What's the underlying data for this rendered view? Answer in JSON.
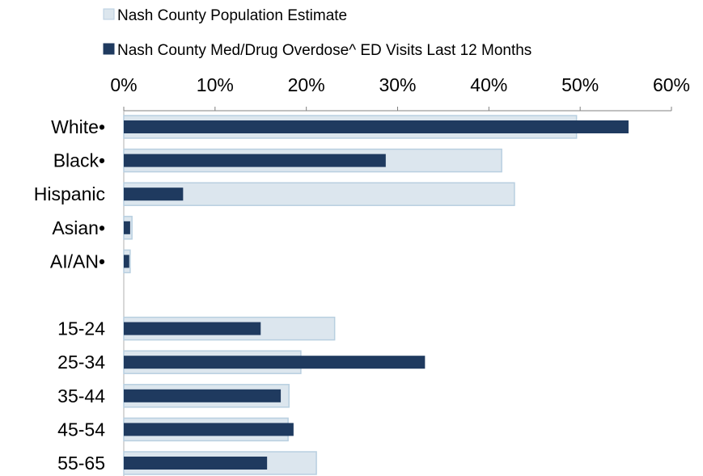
{
  "chart_data": {
    "type": "bar",
    "orientation": "horizontal",
    "title": "",
    "xlabel": "",
    "ylabel": "",
    "xlim": [
      0,
      0.6
    ],
    "x_ticks": [
      {
        "value": 0.0,
        "label": "0%"
      },
      {
        "value": 0.1,
        "label": "10%"
      },
      {
        "value": 0.2,
        "label": "20%"
      },
      {
        "value": 0.3,
        "label": "30%"
      },
      {
        "value": 0.4,
        "label": "40%"
      },
      {
        "value": 0.5,
        "label": "50%"
      },
      {
        "value": 0.6,
        "label": "60%"
      }
    ],
    "x_axis_position": "top",
    "grid": false,
    "legend_position": "top",
    "categories": [
      "White•",
      "Black•",
      "Hispanic",
      "Asian•",
      "AI/AN•",
      "",
      "15-24",
      "25-34",
      "35-44",
      "45-54",
      "55-65"
    ],
    "series": [
      {
        "name": "Nash County Population Estimate",
        "color": "#dce6ee",
        "border_color": "#b8cfe0",
        "values": [
          0.496,
          0.414,
          0.428,
          0.009,
          0.007,
          null,
          0.231,
          0.194,
          0.181,
          0.18,
          0.211
        ]
      },
      {
        "name": "Nash County Med/Drug Overdose^ ED Visits Last 12 Months",
        "color": "#1f3a5f",
        "values": [
          0.553,
          0.287,
          0.065,
          0.007,
          0.006,
          null,
          0.15,
          0.33,
          0.172,
          0.186,
          0.157
        ]
      }
    ]
  }
}
